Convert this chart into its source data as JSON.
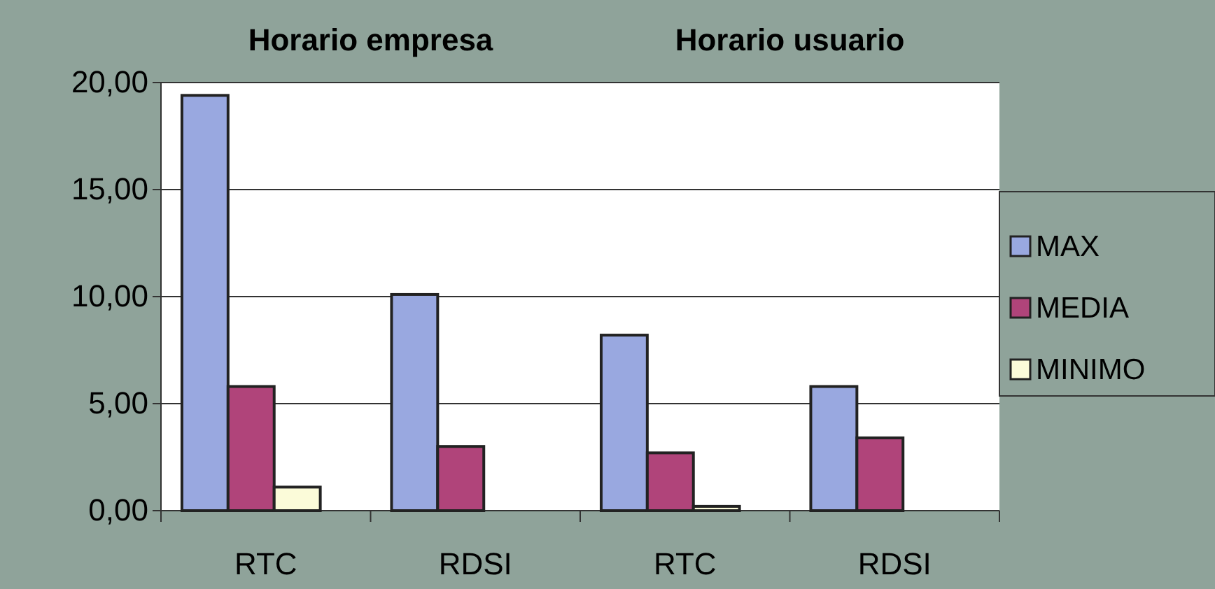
{
  "chart_data": {
    "type": "bar",
    "categories": [
      "RTC",
      "RDSI",
      "RTC",
      "RDSI"
    ],
    "series": [
      {
        "name": "MAX",
        "color": "#99a8e0",
        "values": [
          19.4,
          10.1,
          8.2,
          5.8
        ]
      },
      {
        "name": "MEDIA",
        "color": "#b0447a",
        "values": [
          5.8,
          3.0,
          2.7,
          3.4
        ]
      },
      {
        "name": "MINIMO",
        "color": "#fbfbd9",
        "values": [
          1.1,
          0,
          0.2,
          0
        ]
      }
    ],
    "ylim": [
      0,
      20
    ],
    "yticks": [
      {
        "value": 0,
        "label": "0,00"
      },
      {
        "value": 5,
        "label": "5,00"
      },
      {
        "value": 10,
        "label": "10,00"
      },
      {
        "value": 15,
        "label": "15,00"
      },
      {
        "value": 20,
        "label": "20,00"
      }
    ],
    "grid": "y",
    "legend": "right",
    "annotations": [
      "Horario empresa",
      "Horario usuario"
    ]
  }
}
